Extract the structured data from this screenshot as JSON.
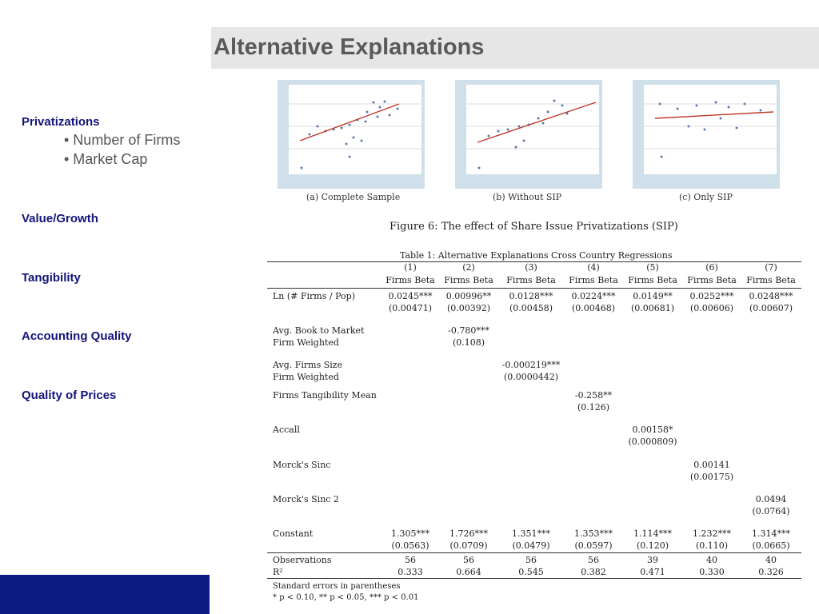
{
  "slide": {
    "title": "Alternative Explanations",
    "sidebar": [
      {
        "label": "Privatizations",
        "bullets": [
          "• Number of Firms",
          "• Market Cap"
        ]
      },
      {
        "label": "Value/Growth"
      },
      {
        "label": "Tangibility"
      },
      {
        "label": "Accounting Quality"
      },
      {
        "label": "Quality of Prices"
      }
    ]
  },
  "figure": {
    "panels": [
      {
        "caption": "(a) Complete Sample"
      },
      {
        "caption": "(b) Without SIP"
      },
      {
        "caption": "(c) Only SIP"
      }
    ],
    "caption": "Figure 6: The effect of Share Issue Privatizations (SIP)"
  },
  "table": {
    "title": "Table 1: Alternative Explanations Cross Country Regressions",
    "col_numbers": [
      "(1)",
      "(2)",
      "(3)",
      "(4)",
      "(5)",
      "(6)",
      "(7)"
    ],
    "col_names": [
      "Firms Beta",
      "Firms Beta",
      "Firms Beta",
      "Firms Beta",
      "Firms Beta",
      "Firms Beta",
      "Firms Beta"
    ],
    "rows": [
      {
        "label": [
          "Ln (# Firms / Pop)"
        ],
        "coef": [
          "0.0245***",
          "0.00996**",
          "0.0128***",
          "0.0224***",
          "0.0149**",
          "0.0252***",
          "0.0248***"
        ],
        "se": [
          "(0.00471)",
          "(0.00392)",
          "(0.00458)",
          "(0.00468)",
          "(0.00681)",
          "(0.00606)",
          "(0.00607)"
        ]
      },
      {
        "label": [
          "Avg. Book to Market",
          "Firm Weighted"
        ],
        "coef": [
          "",
          "-0.780***",
          "",
          "",
          "",
          "",
          ""
        ],
        "se": [
          "",
          "(0.108)",
          "",
          "",
          "",
          "",
          ""
        ]
      },
      {
        "label": [
          "Avg. Firms Size",
          "Firm Weighted"
        ],
        "coef": [
          "",
          "",
          "-0.000219***",
          "",
          "",
          "",
          ""
        ],
        "se": [
          "",
          "",
          "(0.0000442)",
          "",
          "",
          "",
          ""
        ]
      },
      {
        "label": [
          "Firms Tangibility Mean"
        ],
        "coef": [
          "",
          "",
          "",
          "-0.258**",
          "",
          "",
          ""
        ],
        "se": [
          "",
          "",
          "",
          "(0.126)",
          "",
          "",
          ""
        ]
      },
      {
        "label": [
          "Accall"
        ],
        "coef": [
          "",
          "",
          "",
          "",
          "0.00158*",
          "",
          ""
        ],
        "se": [
          "",
          "",
          "",
          "",
          "(0.000809)",
          "",
          ""
        ]
      },
      {
        "label": [
          "Morck's Sinc"
        ],
        "coef": [
          "",
          "",
          "",
          "",
          "",
          "0.00141",
          ""
        ],
        "se": [
          "",
          "",
          "",
          "",
          "",
          "(0.00175)",
          ""
        ]
      },
      {
        "label": [
          "Morck's Sinc 2"
        ],
        "coef": [
          "",
          "",
          "",
          "",
          "",
          "",
          "0.0494"
        ],
        "se": [
          "",
          "",
          "",
          "",
          "",
          "",
          "(0.0764)"
        ]
      },
      {
        "label": [
          "Constant"
        ],
        "coef": [
          "1.305***",
          "1.726***",
          "1.351***",
          "1.353***",
          "1.114***",
          "1.232***",
          "1.314***"
        ],
        "se": [
          "(0.0563)",
          "(0.0709)",
          "(0.0479)",
          "(0.0597)",
          "(0.120)",
          "(0.110)",
          "(0.0665)"
        ]
      }
    ],
    "stats": [
      {
        "label": "Observations",
        "values": [
          "56",
          "56",
          "56",
          "56",
          "39",
          "40",
          "40"
        ]
      },
      {
        "label": "R²",
        "values": [
          "0.333",
          "0.664",
          "0.545",
          "0.382",
          "0.471",
          "0.330",
          "0.326"
        ]
      }
    ],
    "notes": [
      "Standard errors in parentheses",
      "* p < 0.10, ** p < 0.05, *** p < 0.01"
    ]
  },
  "colors": {
    "title_bg": "#e6e6e6",
    "nav_text": "#14147a",
    "footer": "#0a1a82",
    "fit_line": "#c0392b"
  }
}
